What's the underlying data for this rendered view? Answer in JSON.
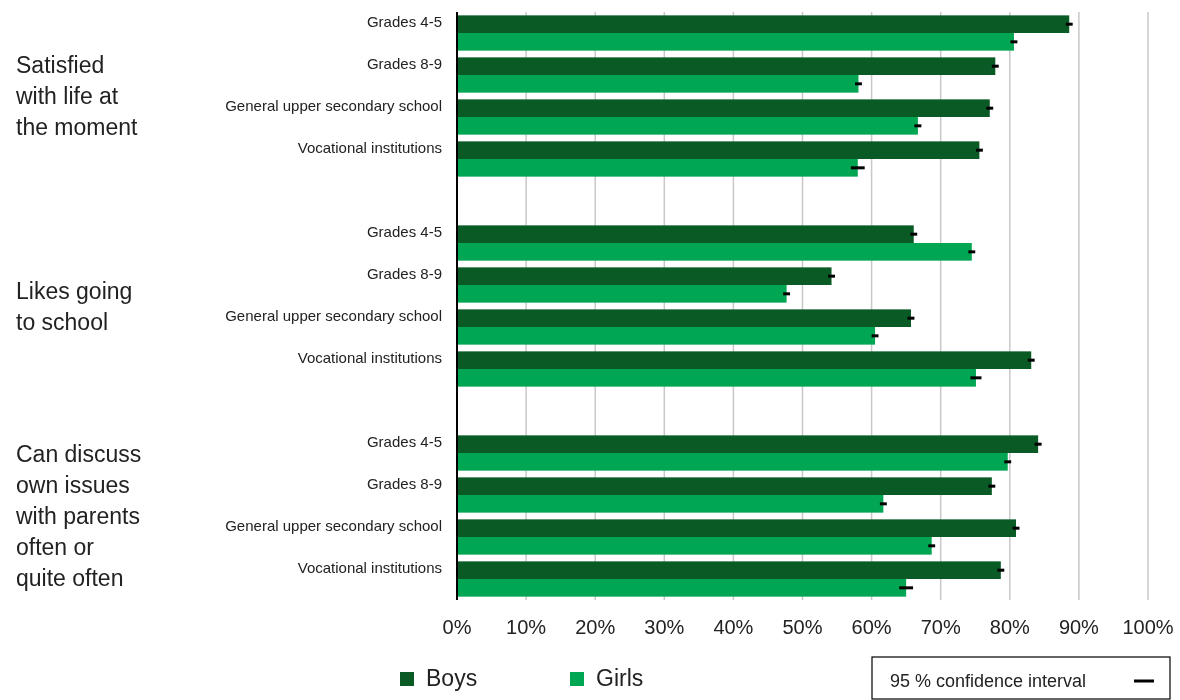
{
  "chart_data": {
    "type": "bar",
    "orientation": "horizontal",
    "categories": [
      "Grades 4-5",
      "Grades 8-9",
      "General upper secondary school",
      "Vocational institutions",
      null,
      "Grades 4-5",
      "Grades 8-9",
      "General upper secondary school",
      "Vocational institutions",
      null,
      "Grades 4-5",
      "Grades 8-9",
      "General upper secondary school",
      "Vocational institutions"
    ],
    "series": [
      {
        "name": "Boys",
        "color": "#0a5a26",
        "values": [
          88.6,
          77.9,
          77.1,
          75.6,
          null,
          66.1,
          54.2,
          65.7,
          83.1,
          null,
          84.1,
          77.4,
          80.9,
          78.7
        ],
        "errors": [
          0.5,
          0.5,
          0.5,
          0.5,
          null,
          0.5,
          0.5,
          0.5,
          0.5,
          null,
          0.5,
          0.5,
          0.5,
          0.5
        ]
      },
      {
        "name": "Girls",
        "color": "#00a651",
        "values": [
          80.6,
          58.1,
          66.7,
          58.0,
          null,
          74.5,
          47.7,
          60.5,
          75.1,
          null,
          79.7,
          61.7,
          68.7,
          65.0
        ],
        "errors": [
          0.5,
          0.5,
          0.5,
          1,
          null,
          0.5,
          0.5,
          0.5,
          0.8,
          null,
          0.5,
          0.5,
          0.5,
          1
        ]
      }
    ],
    "xlim": [
      0,
      100
    ],
    "xticks": [
      {
        "value": 0,
        "label": "0%"
      },
      {
        "value": 10,
        "label": "10%"
      },
      {
        "value": 20,
        "label": "20%"
      },
      {
        "value": 30,
        "label": "30%"
      },
      {
        "value": 40,
        "label": "40%"
      },
      {
        "value": 50,
        "label": "50%"
      },
      {
        "value": 60,
        "label": "60%"
      },
      {
        "value": 70,
        "label": "70%"
      },
      {
        "value": 80,
        "label": "80%"
      },
      {
        "value": 90,
        "label": "90%"
      },
      {
        "value": 100,
        "label": "100%"
      }
    ],
    "grid": "x",
    "legend": "bottom",
    "annotations": [
      "Satisfied with life at the moment",
      "Likes going to school",
      "Can discuss own issues with parents often or quite often",
      "95 % confidence interval"
    ]
  }
}
